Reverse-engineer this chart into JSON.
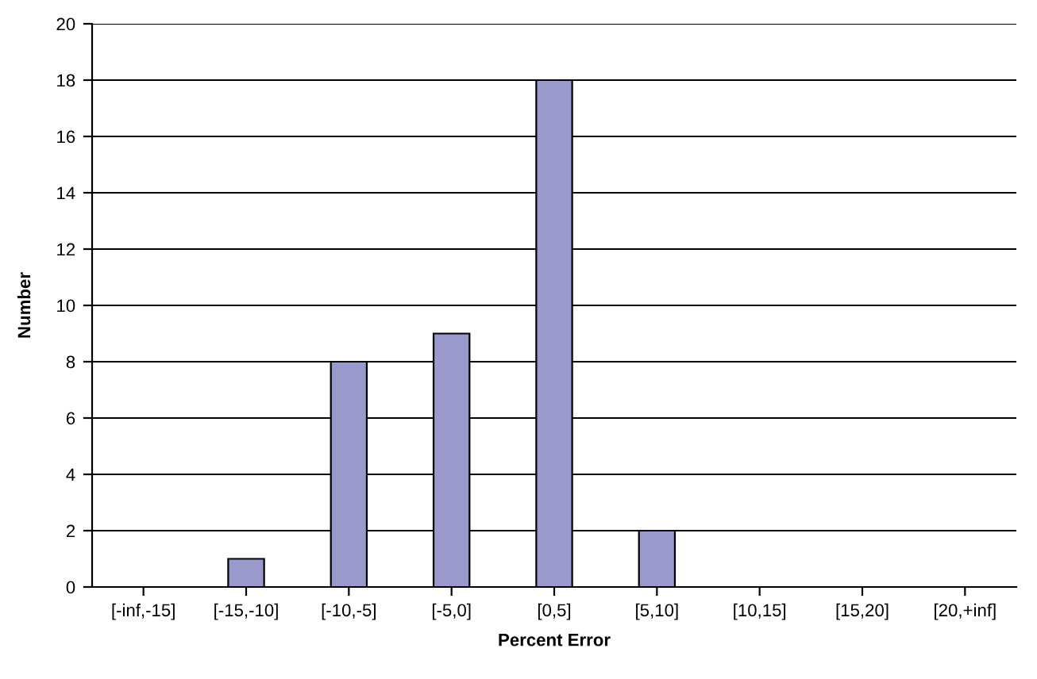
{
  "chart_data": {
    "type": "bar",
    "xlabel": "Percent Error",
    "ylabel": "Number",
    "categories": [
      "[-inf,-15]",
      "[-15,-10]",
      "[-10,-5]",
      "[-5,0]",
      "[0,5]",
      "[5,10]",
      "[10,15]",
      "[15,20]",
      "[20,+inf]"
    ],
    "values": [
      0,
      1,
      8,
      9,
      18,
      2,
      0,
      0,
      0
    ],
    "color": "#9999cc",
    "ylim": [
      0,
      20
    ],
    "yticks": [
      0,
      2,
      4,
      6,
      8,
      10,
      12,
      14,
      16,
      18,
      20
    ],
    "grid": "y",
    "legend": false
  }
}
